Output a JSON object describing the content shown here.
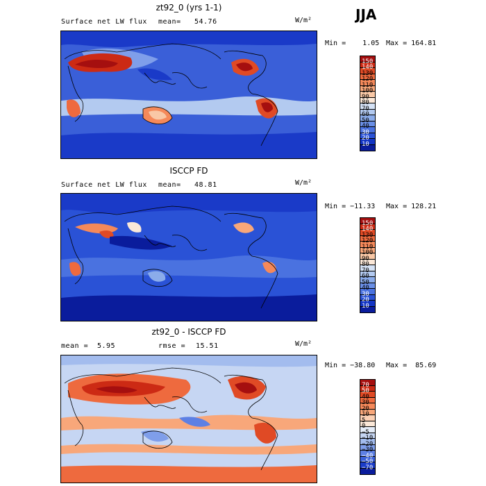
{
  "season": "JJA",
  "panels": [
    {
      "title": "zt92_0 (yrs 1-1)",
      "left_label": "Surface net LW flux",
      "stat_label": "mean=",
      "stat_value": "54.76",
      "units": "W/m²",
      "min_text": "Min =    1.05",
      "max_text": "Max = 164.81",
      "levels": [
        "150",
        "140",
        "130",
        "120",
        "110",
        "100",
        "90",
        "80",
        "70",
        "60",
        "50",
        "40",
        "30",
        "20",
        "10"
      ],
      "colors": [
        "#a50f0f",
        "#cc2a14",
        "#e04a25",
        "#ee6a3e",
        "#f5895a",
        "#f8a77a",
        "#f9c8a6",
        "#fbe8d8",
        "#d5e2f5",
        "#b3caf0",
        "#8bacea",
        "#6a8fe6",
        "#4a72e0",
        "#2a52d6",
        "#1234c4",
        "#0a1c9c"
      ]
    },
    {
      "title": "ISCCP FD",
      "left_label": "Surface net LW flux",
      "stat_label": "mean=",
      "stat_value": "48.81",
      "units": "W/m²",
      "min_text": "Min = −11.33",
      "max_text": "Max = 128.21",
      "levels": [
        "150",
        "140",
        "130",
        "120",
        "110",
        "100",
        "90",
        "80",
        "70",
        "60",
        "50",
        "40",
        "30",
        "20",
        "10"
      ],
      "colors": [
        "#a50f0f",
        "#cc2a14",
        "#e04a25",
        "#ee6a3e",
        "#f5895a",
        "#f8a77a",
        "#f9c8a6",
        "#fbe8d8",
        "#d5e2f5",
        "#b3caf0",
        "#8bacea",
        "#6a8fe6",
        "#4a72e0",
        "#2a52d6",
        "#1234c4",
        "#0a1c9c"
      ]
    },
    {
      "title": "zt92_0 - ISCCP FD",
      "left_label": "mean =",
      "left_value": "5.95",
      "stat_label": "rmse =",
      "stat_value": "15.51",
      "units": "W/m²",
      "min_text": "Min = −38.80",
      "max_text": "Max =  85.69",
      "levels": [
        "70",
        "50",
        "40",
        "30",
        "20",
        "10",
        "5",
        "0",
        "−5",
        "−10",
        "−20",
        "−30",
        "−40",
        "−50",
        "−70"
      ],
      "colors": [
        "#a50f0f",
        "#cc2a14",
        "#e04a25",
        "#ee6a3e",
        "#f5895a",
        "#f8a77a",
        "#fbd0b4",
        "#fbe8d8",
        "#e4ecf8",
        "#c6d6f3",
        "#a3bcee",
        "#7f9eea",
        "#5d80e4",
        "#3a60d8",
        "#1a3cc8",
        "#0a1c9c"
      ]
    }
  ]
}
